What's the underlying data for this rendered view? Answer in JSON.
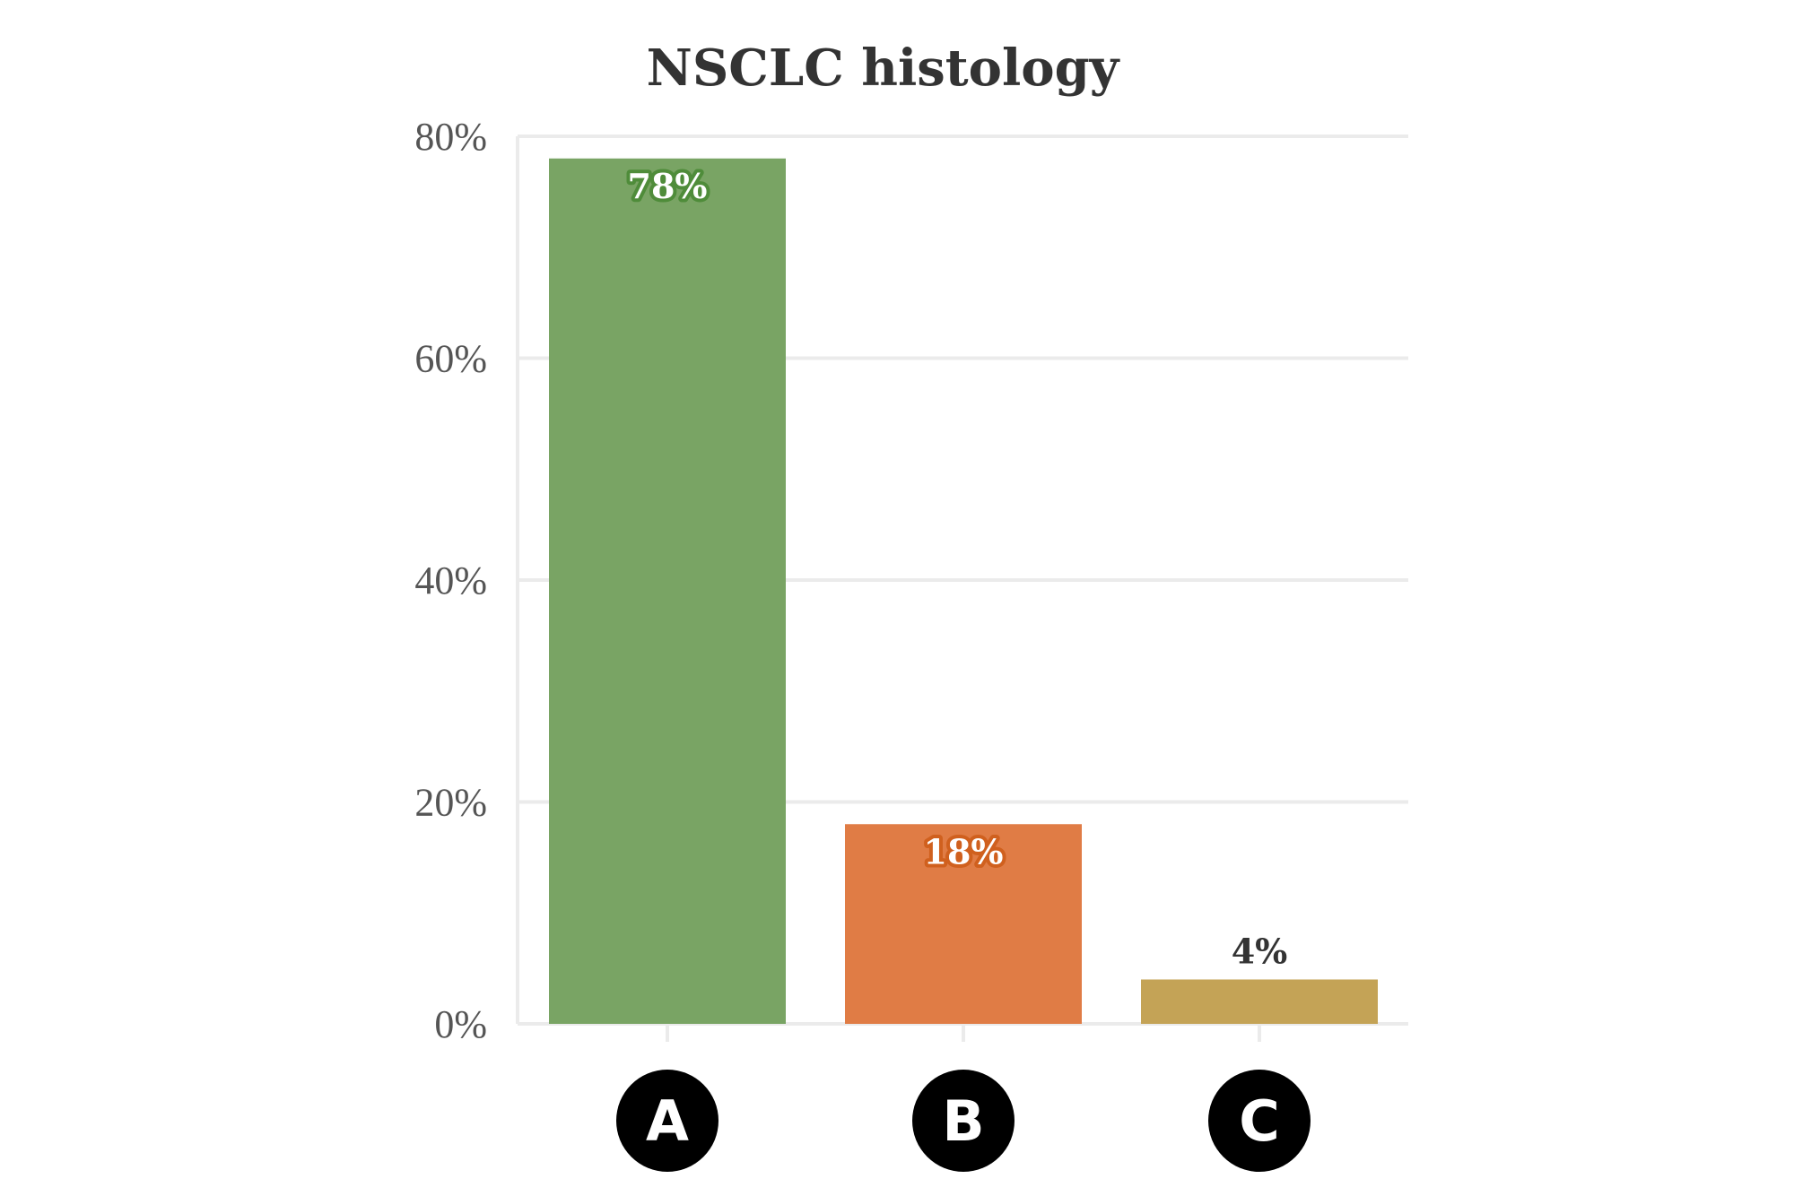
{
  "chart_data": {
    "type": "bar",
    "title": "NSCLC histology",
    "xlabel": "",
    "ylabel": "",
    "categories": [
      "A",
      "B",
      "C"
    ],
    "values": [
      78,
      18,
      4
    ],
    "value_labels": [
      "78%",
      "18%",
      "4%"
    ],
    "ylim": [
      0,
      80
    ],
    "yticks": [
      0,
      20,
      40,
      60,
      80
    ],
    "ytick_labels": [
      "0%",
      "20%",
      "40%",
      "60%",
      "80%"
    ],
    "grid": "horizontal",
    "legend": "none",
    "colors": [
      "#79a464",
      "#e07c45",
      "#c4a356"
    ],
    "label_halo_colors": [
      "#4f8c3a",
      "#d0601e",
      null
    ],
    "label_text_colors": [
      "#ffffff",
      "#ffffff",
      "#333333"
    ]
  }
}
